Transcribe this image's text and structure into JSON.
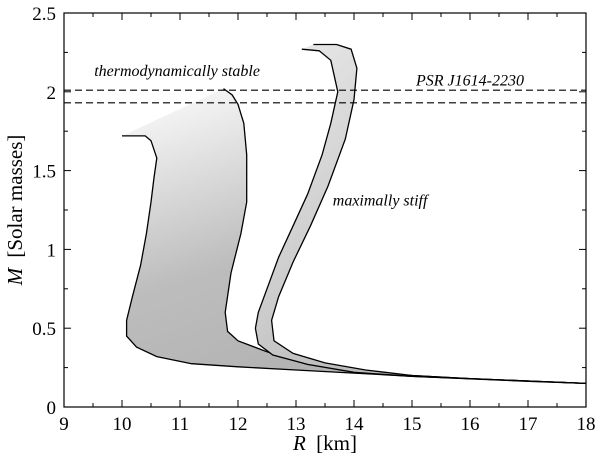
{
  "chart_data": {
    "type": "area",
    "xlabel": {
      "var": "R",
      "unit": "[km]"
    },
    "ylabel": {
      "var": "M",
      "unit": "[Solar masses]"
    },
    "xlim": [
      9,
      18
    ],
    "ylim": [
      0,
      2.5
    ],
    "xticks": [
      9,
      10,
      11,
      12,
      13,
      14,
      15,
      16,
      17,
      18
    ],
    "yticks": [
      0,
      0.5,
      1,
      1.5,
      2,
      2.5
    ],
    "ytick_labels": [
      "0",
      "0.5",
      "1",
      "1.5",
      "2",
      "2.5"
    ],
    "grid": false,
    "hlines": [
      {
        "y": 2.01,
        "style": "dashed"
      },
      {
        "y": 1.93,
        "style": "dashed"
      }
    ],
    "annotations": [
      {
        "text": "thermodynamically stable",
        "x": 10.95,
        "y": 2.1
      },
      {
        "text": "PSR J1614-2230",
        "x": 16.0,
        "y": 2.04
      },
      {
        "text": "maximally stiff",
        "x": 14.45,
        "y": 1.28
      }
    ],
    "bands": [
      {
        "label": "thermodynamically stable",
        "fill": "#b4b4b4",
        "gradient": true,
        "outer": [
          [
            18.0,
            0.15
          ],
          [
            17.0,
            0.165
          ],
          [
            16.0,
            0.18
          ],
          [
            15.0,
            0.195
          ],
          [
            14.0,
            0.215
          ],
          [
            13.0,
            0.235
          ],
          [
            12.0,
            0.255
          ],
          [
            11.2,
            0.275
          ],
          [
            10.6,
            0.32
          ],
          [
            10.25,
            0.38
          ],
          [
            10.08,
            0.45
          ],
          [
            10.08,
            0.55
          ],
          [
            10.18,
            0.7
          ],
          [
            10.32,
            0.9
          ],
          [
            10.42,
            1.1
          ],
          [
            10.5,
            1.3
          ],
          [
            10.55,
            1.45
          ],
          [
            10.6,
            1.58
          ],
          [
            10.5,
            1.69
          ],
          [
            10.4,
            1.72
          ],
          [
            10.3,
            1.72
          ],
          [
            10.0,
            1.72
          ]
        ],
        "inner": [
          [
            18.0,
            0.15
          ],
          [
            17.0,
            0.165
          ],
          [
            16.0,
            0.18
          ],
          [
            15.0,
            0.2
          ],
          [
            14.0,
            0.225
          ],
          [
            13.2,
            0.27
          ],
          [
            12.5,
            0.35
          ],
          [
            12.0,
            0.42
          ],
          [
            11.82,
            0.48
          ],
          [
            11.78,
            0.6
          ],
          [
            11.88,
            0.85
          ],
          [
            12.05,
            1.1
          ],
          [
            12.15,
            1.3
          ],
          [
            12.15,
            1.6
          ],
          [
            12.1,
            1.8
          ],
          [
            12.0,
            1.92
          ],
          [
            11.9,
            1.98
          ],
          [
            11.75,
            2.02
          ]
        ]
      },
      {
        "label": "maximally stiff",
        "fill": "#bdbdbd",
        "gradient": true,
        "outer": [
          [
            18.0,
            0.15
          ],
          [
            17.0,
            0.163
          ],
          [
            16.0,
            0.178
          ],
          [
            15.0,
            0.195
          ],
          [
            14.0,
            0.22
          ],
          [
            13.2,
            0.27
          ],
          [
            12.6,
            0.33
          ],
          [
            12.35,
            0.4
          ],
          [
            12.3,
            0.5
          ],
          [
            12.35,
            0.6
          ],
          [
            12.5,
            0.75
          ],
          [
            12.7,
            0.95
          ],
          [
            12.95,
            1.15
          ],
          [
            13.2,
            1.35
          ],
          [
            13.45,
            1.6
          ],
          [
            13.6,
            1.8
          ],
          [
            13.72,
            2.0
          ],
          [
            13.6,
            2.2
          ],
          [
            13.4,
            2.26
          ],
          [
            13.1,
            2.27
          ]
        ],
        "inner": [
          [
            18.0,
            0.15
          ],
          [
            17.0,
            0.165
          ],
          [
            16.0,
            0.18
          ],
          [
            15.0,
            0.2
          ],
          [
            14.2,
            0.235
          ],
          [
            13.5,
            0.28
          ],
          [
            12.95,
            0.34
          ],
          [
            12.62,
            0.42
          ],
          [
            12.58,
            0.55
          ],
          [
            12.7,
            0.7
          ],
          [
            12.95,
            0.92
          ],
          [
            13.25,
            1.15
          ],
          [
            13.55,
            1.4
          ],
          [
            13.85,
            1.7
          ],
          [
            14.0,
            1.95
          ],
          [
            14.05,
            2.15
          ],
          [
            13.95,
            2.27
          ],
          [
            13.7,
            2.3
          ],
          [
            13.3,
            2.3
          ]
        ]
      }
    ]
  }
}
